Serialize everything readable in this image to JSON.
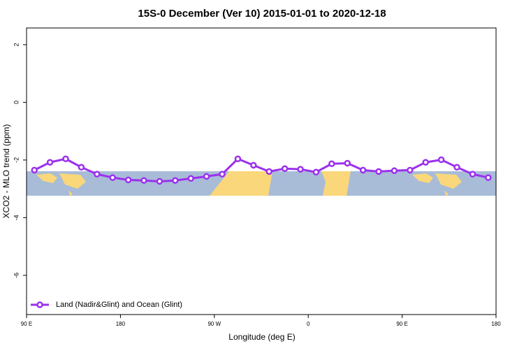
{
  "chart_data": {
    "type": "line",
    "title": "15S-0 December (Ver 10)   2015-01-01 to 2020-12-18",
    "x_label": "Longitude (deg E)",
    "y_label": "XCO2 - MLO trend (ppm)",
    "x": [
      97.5,
      112.5,
      127.5,
      142.5,
      157.5,
      172.5,
      187.5,
      202.5,
      217.5,
      232.5,
      247.5,
      262.5,
      277.5,
      292.5,
      307.5,
      322.5,
      337.5,
      352.5,
      367.5,
      382.5,
      397.5,
      412.5,
      427.5,
      442.5,
      457.5,
      472.5,
      487.5,
      502.5,
      517.5,
      532.5
    ],
    "series": [
      {
        "name": "Land (Nadir&Glint) and Ocean (Glint)",
        "color": "#9b30ee",
        "values": [
          -2.35,
          -2.08,
          -1.96,
          -2.25,
          -2.49,
          -2.61,
          -2.69,
          -2.71,
          -2.74,
          -2.71,
          -2.64,
          -2.57,
          -2.49,
          -1.96,
          -2.18,
          -2.4,
          -2.3,
          -2.32,
          -2.42,
          -2.13,
          -2.11,
          -2.35,
          -2.4,
          -2.37,
          -2.35,
          -2.08,
          -1.99,
          -2.25,
          -2.49,
          -2.61
        ]
      }
    ],
    "xlim": [
      90,
      540
    ],
    "xticks": [
      {
        "value": 90,
        "label": "90 E"
      },
      180,
      {
        "value": 270,
        "label": "90 W"
      },
      {
        "value": 360,
        "label": "0"
      },
      {
        "value": 450,
        "label": "90 E"
      },
      {
        "value": 540,
        "label": "180"
      }
    ],
    "ylim": [
      -7.36,
      2.58
    ],
    "yticks": [
      -6,
      -4,
      -2,
      0,
      2
    ],
    "legend": "bottom-left"
  }
}
